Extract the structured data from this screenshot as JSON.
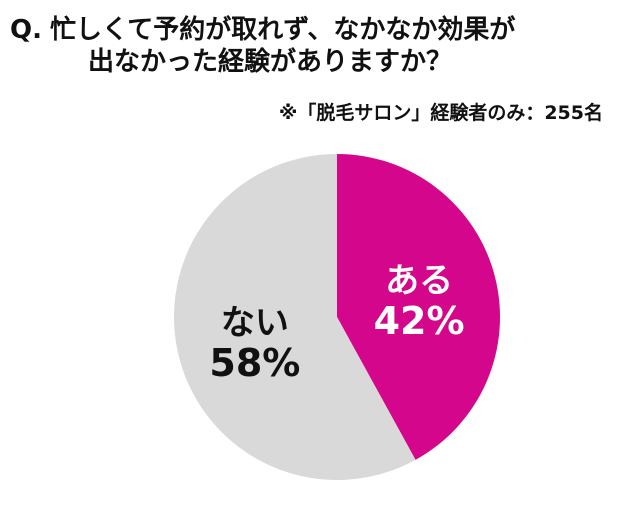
{
  "title": {
    "q_mark": "Q.",
    "line1": "忙しくて予約が取れず、なかなか効果が",
    "line2": "出なかった経験がありますか？"
  },
  "subtitle": "※「脱毛サロン」経験者のみ：255名",
  "colors": {
    "yes": "#d4068c",
    "no": "#d9d9d9",
    "text_on_yes": "#ffffff",
    "text_on_no": "#111111"
  },
  "chart_data": {
    "type": "pie",
    "title": "忙しくて予約が取れず、なかなか効果が出なかった経験がありますか？",
    "note": "※「脱毛サロン」経験者のみ：255名",
    "slices": [
      {
        "label": "ある",
        "value": 42,
        "value_label": "42%",
        "color": "#d4068c",
        "text_color": "#ffffff"
      },
      {
        "label": "ない",
        "value": 58,
        "value_label": "58%",
        "color": "#d9d9d9",
        "text_color": "#111111"
      }
    ]
  }
}
